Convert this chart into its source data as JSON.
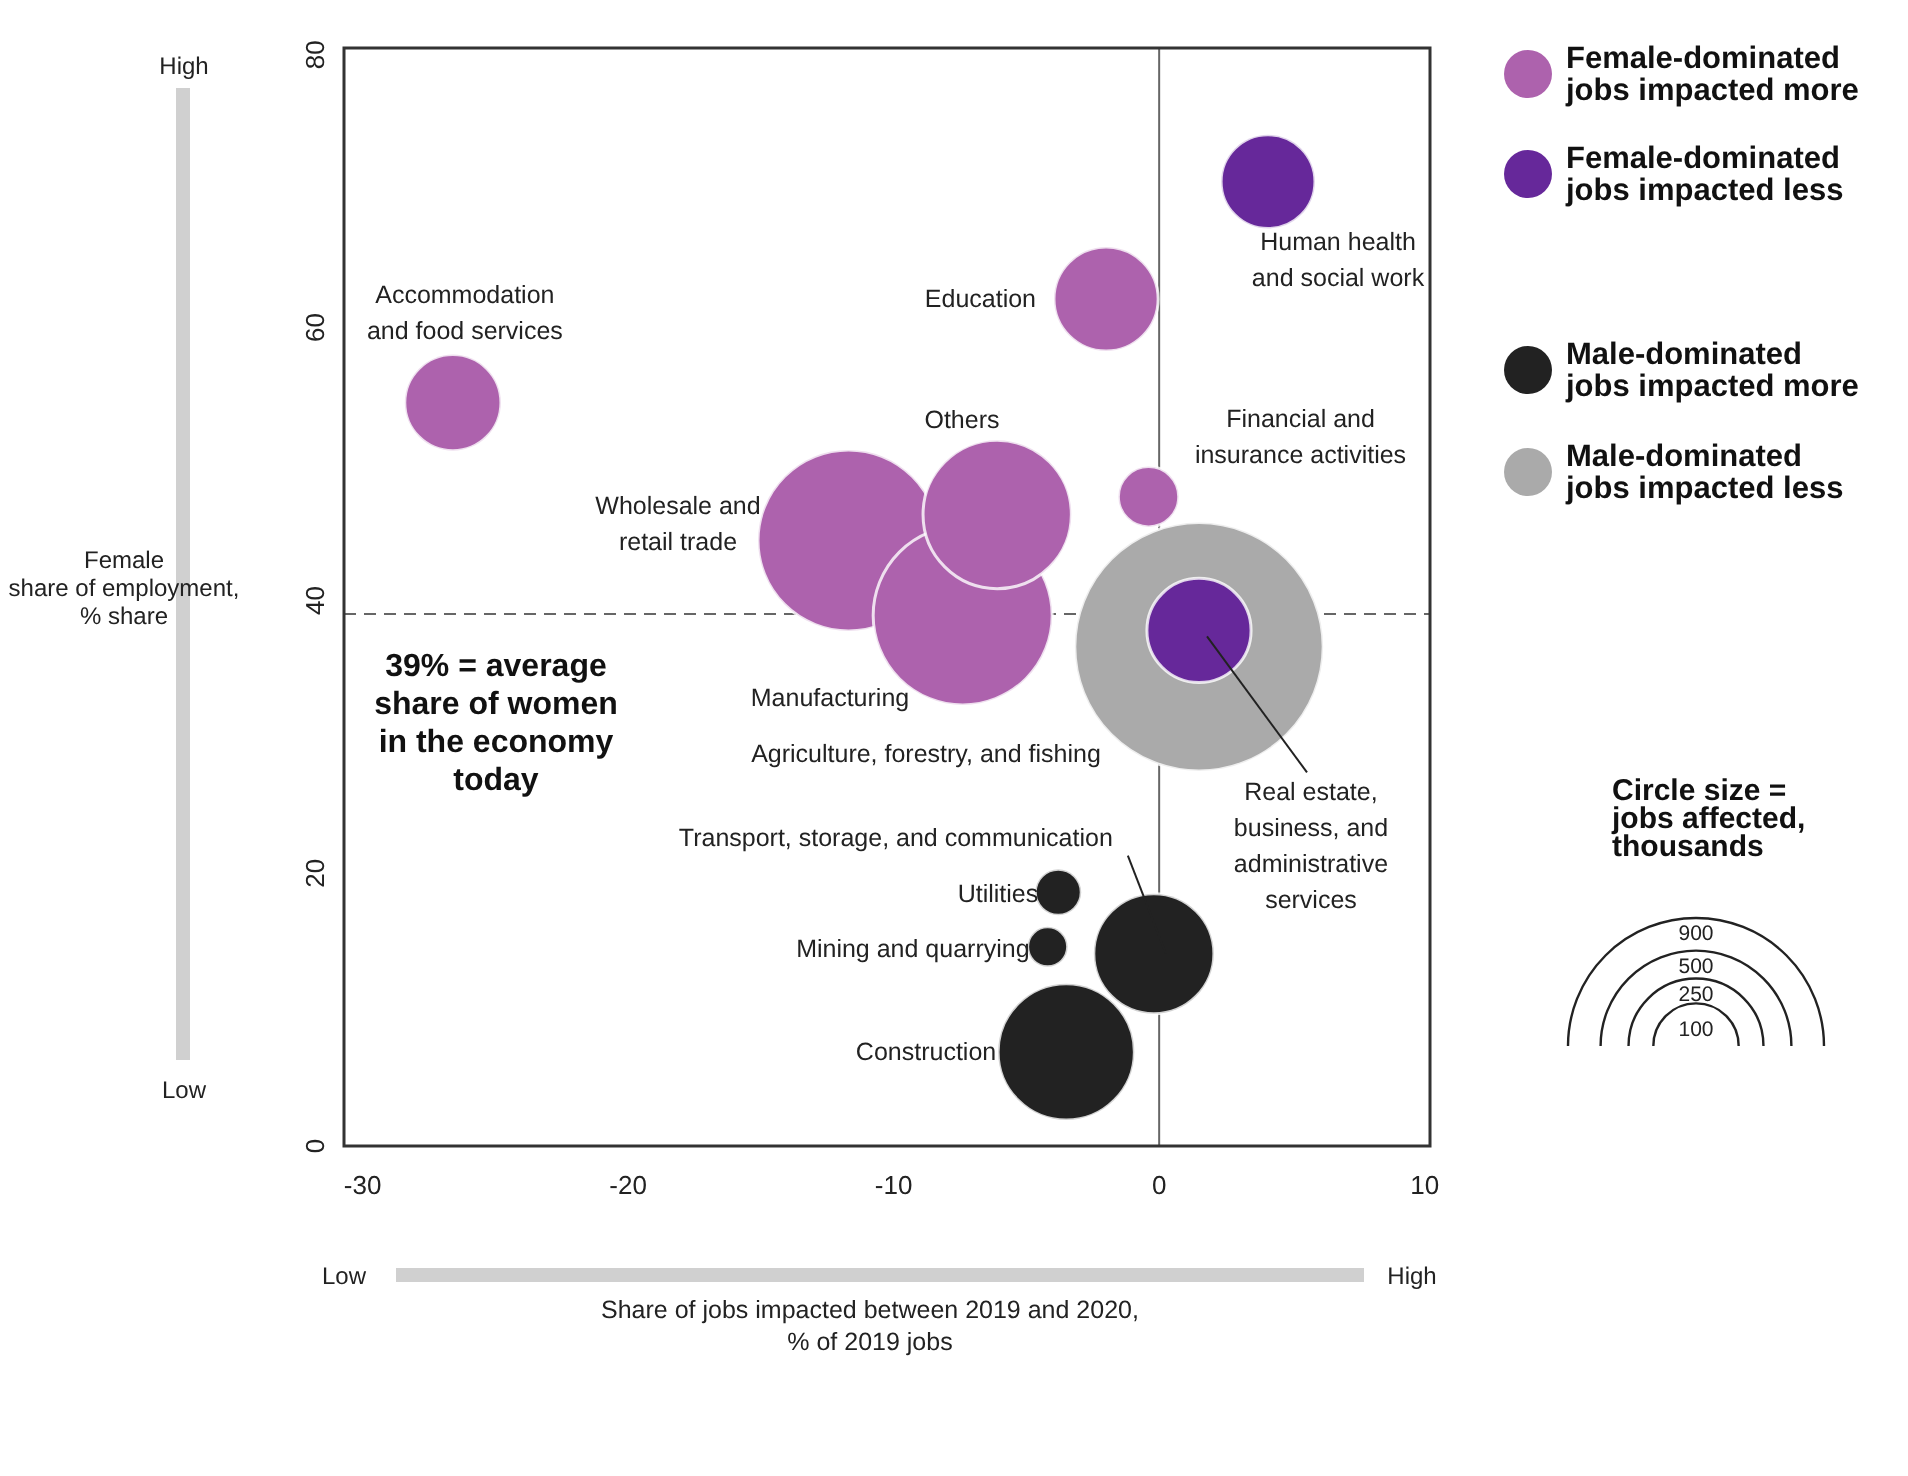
{
  "chart_data": {
    "type": "bubble",
    "xlabel": "Share of jobs impacted between 2019 and 2020,\n% of 2019 jobs",
    "ylabel": "Female\nshare of employment,\n% share",
    "xlim": [
      -30.7,
      10.2
    ],
    "xticks": [
      -30,
      -20,
      -10,
      0,
      10
    ],
    "ylim": [
      0,
      80.5
    ],
    "yticks": [
      0,
      20,
      40,
      60,
      80
    ],
    "grid": false,
    "legend": "top right",
    "legend_title": "Circle size =\njobs affected,\nthousands",
    "size_legend": [
      100,
      250,
      500,
      900
    ],
    "series": [
      {
        "name": "Female-dominated jobs impacted more",
        "color": "#ad62ad",
        "x": [
          -26.6,
          -2.0,
          -0.4,
          -6.1,
          -11.7,
          -7.4
        ],
        "values": [
          54.5,
          62.1,
          47.6,
          46.3,
          44.4,
          38.9
        ],
        "sizes": [
          127,
          149,
          50,
          302,
          450,
          440
        ]
      },
      {
        "name": "Female-dominated jobs impacted less",
        "color": "#66289a",
        "x": [
          4.1,
          1.5
        ],
        "values": [
          70.7,
          37.8
        ],
        "sizes": [
          121,
          149
        ]
      },
      {
        "name": "Male-dominated jobs impacted more",
        "color": "#222222",
        "x": [
          -3.8,
          -4.2,
          -0.2,
          -3.5
        ],
        "values": [
          18.6,
          14.6,
          14.1,
          6.9
        ],
        "sizes": [
          29,
          22,
          198,
          255
        ]
      },
      {
        "name": "Male-dominated jobs impacted less",
        "color": "#aaaaaa",
        "x": [
          1.5
        ],
        "values": [
          36.6
        ],
        "sizes": [
          847
        ]
      }
    ],
    "ref_lines": [
      {
        "axis": "y",
        "value": 39,
        "label": "39% = average\nshare of women\nin the economy\ntoday",
        "line_style": "dashed"
      },
      {
        "axis": "x",
        "value": 0,
        "line_style": "solid"
      }
    ],
    "annotations": [
      {
        "text": "Accommodation\nand food services",
        "x": -26.6,
        "y": 54.5
      },
      {
        "text": "Education",
        "x": -2.0,
        "y": 62.1
      },
      {
        "text": "Human health\nand social work",
        "x": 4.1,
        "y": 70.7
      },
      {
        "text": "Financial and\ninsurance activities",
        "x": -0.4,
        "y": 47.6
      },
      "Others",
      "Wholesale and\nretail trade",
      "Manufacturing",
      "Agriculture, forestry, and fishing",
      {
        "text": "Real estate,\nbusiness, and\nadministrative\nservices",
        "x": 1.5,
        "y": 37.8
      },
      {
        "text": "Transport, storage, and communication",
        "x": -0.2,
        "y": 14.1
      },
      {
        "text": "Utilities",
        "x": -3.8,
        "y": 18.6
      },
      {
        "text": "Mining and quarrying",
        "x": -4.2,
        "y": 14.6
      },
      {
        "text": "Construction",
        "x": -3.5,
        "y": 6.9
      },
      "High",
      "Low",
      "Low",
      "High"
    ]
  }
}
